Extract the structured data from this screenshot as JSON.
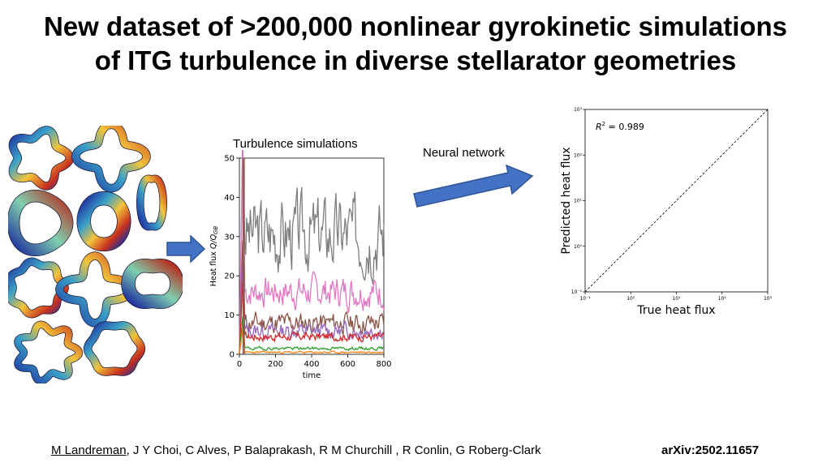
{
  "slide": {
    "title_line1": "New dataset of >200,000 nonlinear gyrokinetic simulations",
    "title_line2": "of ITG turbulence in diverse stellarator geometries",
    "label_turbulence": "Turbulence simulations",
    "label_network": "Neural network",
    "footer_lead_author": "M Landreman",
    "footer_coauthors": ", J Y Choi, C Alves, P Balaprakash, R M Churchill , R Conlin, G Roberg-Clark",
    "footer_arxiv": "arXiv:2502.11657"
  },
  "colors": {
    "arrow_fill": "#4472c4",
    "arrow_stroke": "#2f5597"
  },
  "chart_data": [
    {
      "type": "line",
      "title": "Turbulence simulations",
      "xlabel": "time",
      "ylabel_prefix": "Heat flux ",
      "ylabel_var": "Q/Q",
      "ylabel_sub": "GB",
      "xlim": [
        0,
        800
      ],
      "ylim": [
        0,
        50
      ],
      "xticks": [
        "0",
        "200",
        "400",
        "600",
        "800"
      ],
      "yticks": [
        "0",
        "10",
        "20",
        "30",
        "40",
        "50"
      ],
      "series": [
        {
          "name": "gray",
          "color": "#7f7f7f",
          "level": 31,
          "amp": 7,
          "seed": 3
        },
        {
          "name": "pink",
          "color": "#e377c2",
          "level": 16,
          "amp": 3,
          "seed": 7
        },
        {
          "name": "brown",
          "color": "#8c564b",
          "level": 8,
          "amp": 2,
          "seed": 11
        },
        {
          "name": "purple",
          "color": "#9467bd",
          "level": 6,
          "amp": 1.5,
          "seed": 13
        },
        {
          "name": "red",
          "color": "#d62728",
          "level": 4.5,
          "amp": 0.8,
          "seed": 17
        },
        {
          "name": "green",
          "color": "#2ca02c",
          "level": 1.5,
          "amp": 0.3,
          "seed": 19
        },
        {
          "name": "orange",
          "color": "#ff7f0e",
          "level": 0.5,
          "amp": 0.2,
          "seed": 23
        }
      ]
    },
    {
      "type": "scatter",
      "xscale": "log",
      "yscale": "log",
      "xlabel": "True heat flux",
      "ylabel": "Predicted heat flux",
      "annotation_r": "R",
      "annotation_sup": "2",
      "annotation_val": " = 0.989",
      "xlim": [
        0.1,
        1000
      ],
      "ylim": [
        0.1,
        1000
      ],
      "xticks": [
        "10⁻¹",
        "10⁰",
        "10¹",
        "10²",
        "10³"
      ],
      "yticks": [
        "10⁻¹",
        "10⁰",
        "10¹",
        "10²",
        "10³"
      ],
      "reference_line": "y = x"
    }
  ]
}
